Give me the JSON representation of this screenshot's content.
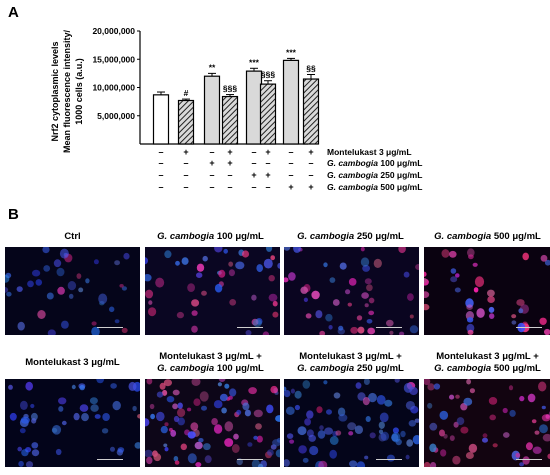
{
  "panel_a_label": "A",
  "panel_b_label": "B",
  "chart_data": {
    "type": "bar",
    "ylabel_lines": [
      "Nrf2 cytoplasmic levels",
      "Mean fluorescence intensity/",
      "1000 cells (a.u.)"
    ],
    "ylim": [
      0,
      20000000
    ],
    "yticks": [
      "20,000,000",
      "15,000,000",
      "10,000,000",
      "5,000,000"
    ],
    "ytick_values": [
      20000000,
      15000000,
      10000000,
      5000000
    ],
    "bars": [
      {
        "value": 8700000,
        "error": 500000,
        "hatched": false,
        "fill": "#ffffff",
        "sig": ""
      },
      {
        "value": 7700000,
        "error": 250000,
        "hatched": true,
        "fill": "#ffffff",
        "sig": "#"
      },
      {
        "value": 12000000,
        "error": 500000,
        "hatched": false,
        "fill": "#d9d9d9",
        "sig": "**"
      },
      {
        "value": 8400000,
        "error": 350000,
        "hatched": true,
        "fill": "#d9d9d9",
        "sig": "§§§"
      },
      {
        "value": 12900000,
        "error": 500000,
        "hatched": false,
        "fill": "#d9d9d9",
        "sig": "***"
      },
      {
        "value": 10600000,
        "error": 600000,
        "hatched": true,
        "fill": "#d9d9d9",
        "sig": "§§§"
      },
      {
        "value": 14800000,
        "error": 350000,
        "hatched": false,
        "fill": "#d9d9d9",
        "sig": "***"
      },
      {
        "value": 11500000,
        "error": 800000,
        "hatched": true,
        "fill": "#d9d9d9",
        "sig": "§§"
      }
    ],
    "conditions": [
      {
        "label": "Montelukast 3 μg/mL",
        "italic_prefix": "",
        "marks": [
          "–",
          "+",
          "–",
          "+",
          "–",
          "+",
          "–",
          "+"
        ]
      },
      {
        "label": " 100 μg/mL",
        "italic_prefix": "G. cambogia",
        "marks": [
          "–",
          "–",
          "+",
          "+",
          "–",
          "–",
          "–",
          "–"
        ]
      },
      {
        "label": " 250 μg/mL",
        "italic_prefix": "G. cambogia",
        "marks": [
          "–",
          "–",
          "–",
          "–",
          "+",
          "+",
          "–",
          "–"
        ]
      },
      {
        "label": " 500 μg/mL",
        "italic_prefix": "G. cambogia",
        "marks": [
          "–",
          "–",
          "–",
          "–",
          "–",
          "–",
          "+",
          "+"
        ]
      }
    ]
  },
  "micrographs": {
    "row1": [
      {
        "name": "ctrl",
        "title_plain": "Ctrl",
        "title_italic": "",
        "title_rest": ""
      },
      {
        "name": "gc100",
        "title_plain": "",
        "title_italic": "G. cambogia",
        "title_rest": " 100 μg/mL"
      },
      {
        "name": "gc250",
        "title_plain": "",
        "title_italic": "G. cambogia",
        "title_rest": " 250 μg/mL"
      },
      {
        "name": "gc500",
        "title_plain": "",
        "title_italic": "G. cambogia",
        "title_rest": " 500 μg/mL"
      }
    ],
    "row2": [
      {
        "name": "mk",
        "line1": "Montelukast 3 μg/mL",
        "line2_italic": "",
        "line2_rest": ""
      },
      {
        "name": "mk-gc100",
        "line1": "Montelukast 3 μg/mL +",
        "line2_italic": "G. cambogia",
        "line2_rest": " 100 μg/mL"
      },
      {
        "name": "mk-gc250",
        "line1": "Montelukast 3 μg/mL +",
        "line2_italic": "G. cambogia",
        "line2_rest": " 250 μg/mL"
      },
      {
        "name": "mk-gc500",
        "line1": "Montelukast 3 μg/mL +",
        "line2_italic": "G. cambogia",
        "line2_rest": " 500 μg/mL"
      }
    ]
  }
}
